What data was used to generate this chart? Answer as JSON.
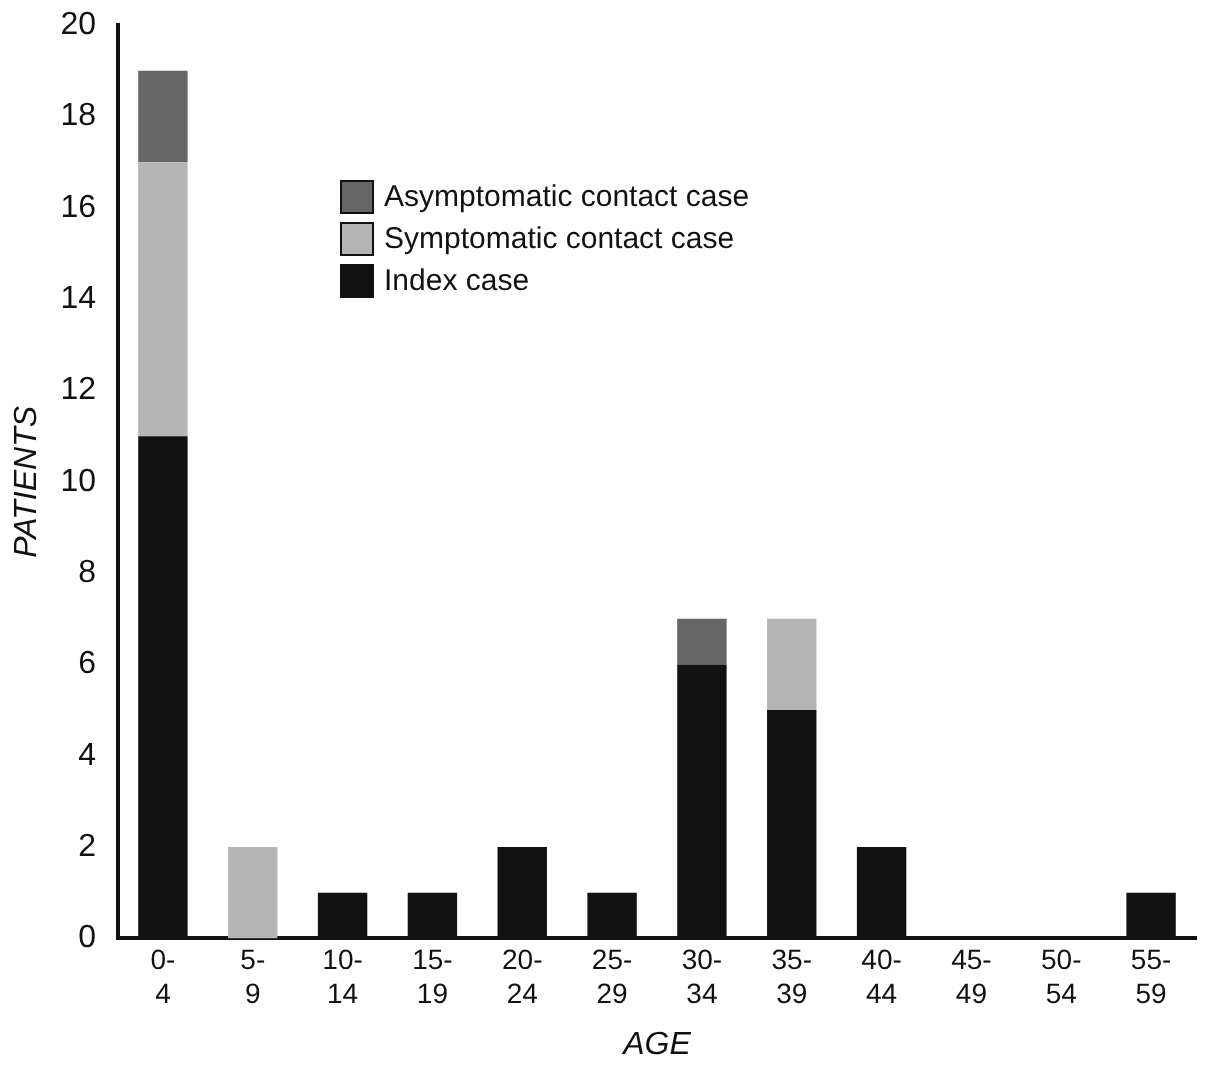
{
  "chart_data": {
    "type": "bar",
    "stacked": true,
    "xlabel": "AGE",
    "ylabel": "PATIENTS",
    "categories": [
      "0-4",
      "5-9",
      "10-14",
      "15-19",
      "20-24",
      "25-29",
      "30-34",
      "35-39",
      "40-44",
      "45-49",
      "50-54",
      "55-59"
    ],
    "series": [
      {
        "name": "Index case",
        "color": "#111111",
        "values": [
          11,
          0,
          1,
          1,
          2,
          1,
          6,
          5,
          2,
          0,
          0,
          1
        ]
      },
      {
        "name": "Symptomatic contact case",
        "color": "#b5b5b5",
        "values": [
          6,
          2,
          0,
          0,
          0,
          0,
          0,
          2,
          0,
          0,
          0,
          0
        ]
      },
      {
        "name": "Asymptomatic contact case",
        "color": "#666666",
        "values": [
          2,
          0,
          0,
          0,
          0,
          0,
          1,
          0,
          0,
          0,
          0,
          0
        ]
      }
    ],
    "ylim": [
      0,
      20
    ],
    "yticks": [
      0,
      2,
      4,
      6,
      8,
      10,
      12,
      14,
      16,
      18,
      20
    ],
    "grid": false,
    "legend": "top"
  }
}
